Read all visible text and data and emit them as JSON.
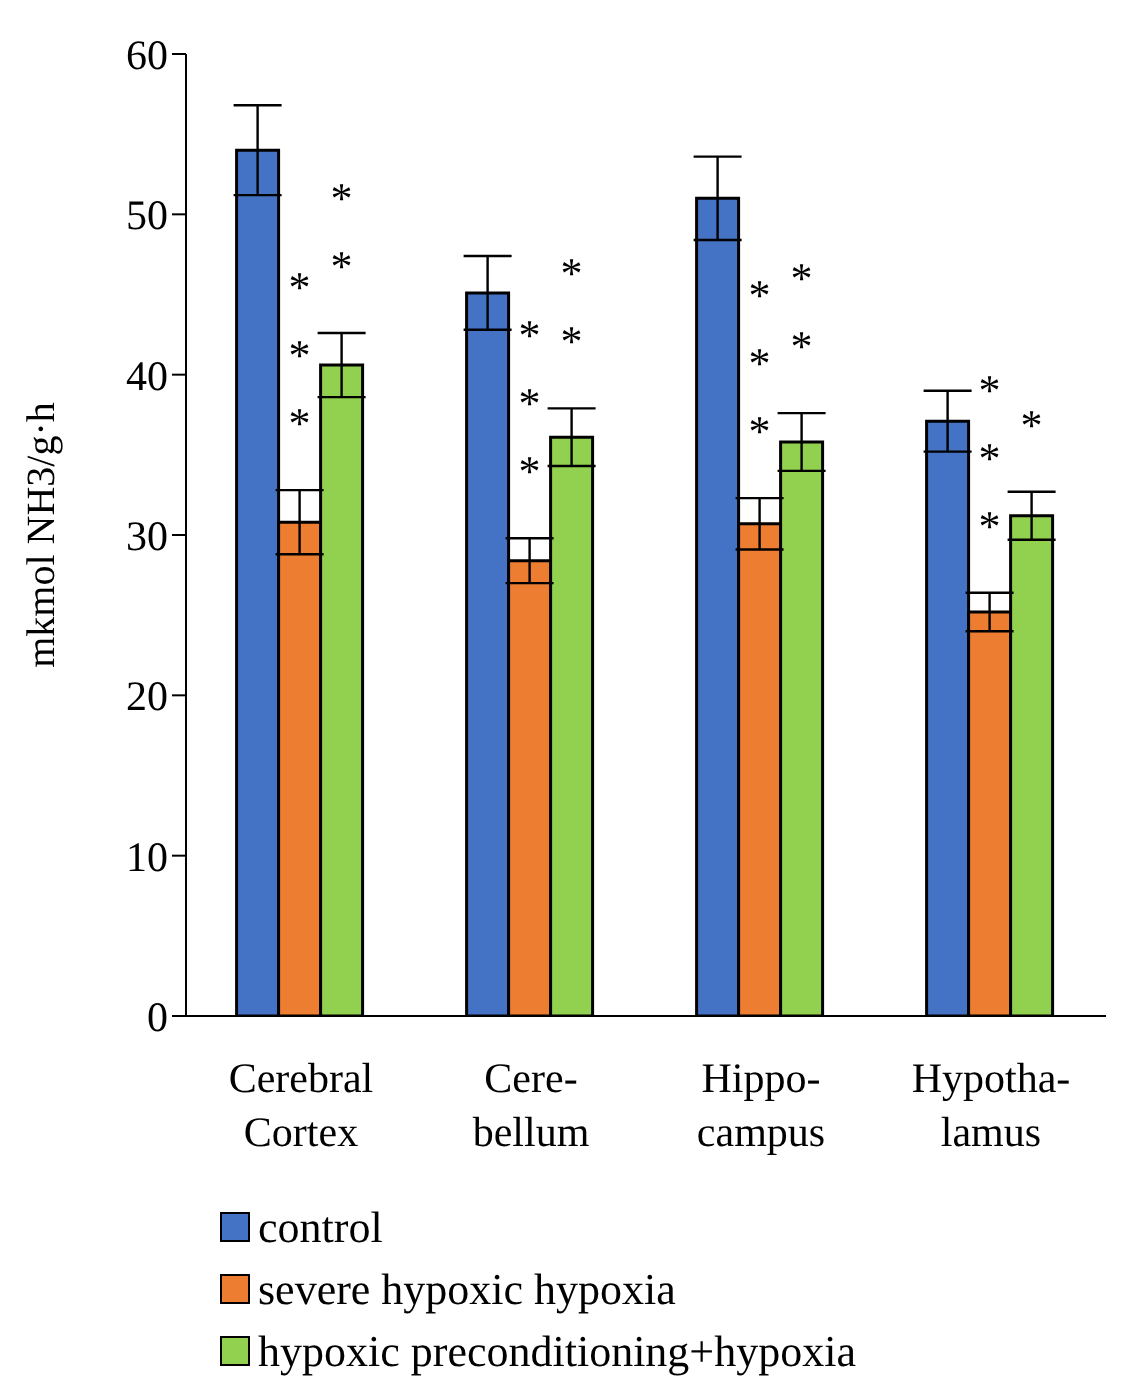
{
  "chart_data": {
    "type": "bar",
    "ylabel": "mkmol NH3/g·h",
    "categories": [
      "Cerebral Cortex",
      "Cere-bellum",
      "Hippo-campus",
      "Hypotha-lamus"
    ],
    "series": [
      {
        "name": "control",
        "color": "#4472c4",
        "values": [
          54.0,
          45.1,
          51.0,
          37.1
        ],
        "errors": [
          2.8,
          2.3,
          2.6,
          1.9
        ]
      },
      {
        "name": "severe hypoxic hypoxia",
        "color": "#ed7d31",
        "values": [
          30.8,
          28.4,
          30.7,
          25.2
        ],
        "errors": [
          2.0,
          1.4,
          1.6,
          1.2
        ],
        "value_labels": [
          "***",
          "***",
          "***",
          "***"
        ]
      },
      {
        "name": "hypoxic preconditioning+hypoxia",
        "color": "#92d050",
        "values": [
          40.6,
          36.1,
          35.8,
          31.2
        ],
        "errors": [
          2.0,
          1.8,
          1.8,
          1.5
        ],
        "value_labels": [
          "**",
          "**",
          "**",
          "*"
        ]
      }
    ],
    "ylim": [
      0,
      60
    ],
    "yticks": [
      0,
      10,
      20,
      30,
      40,
      50,
      60
    ],
    "grid": false,
    "legend": "bottom"
  }
}
